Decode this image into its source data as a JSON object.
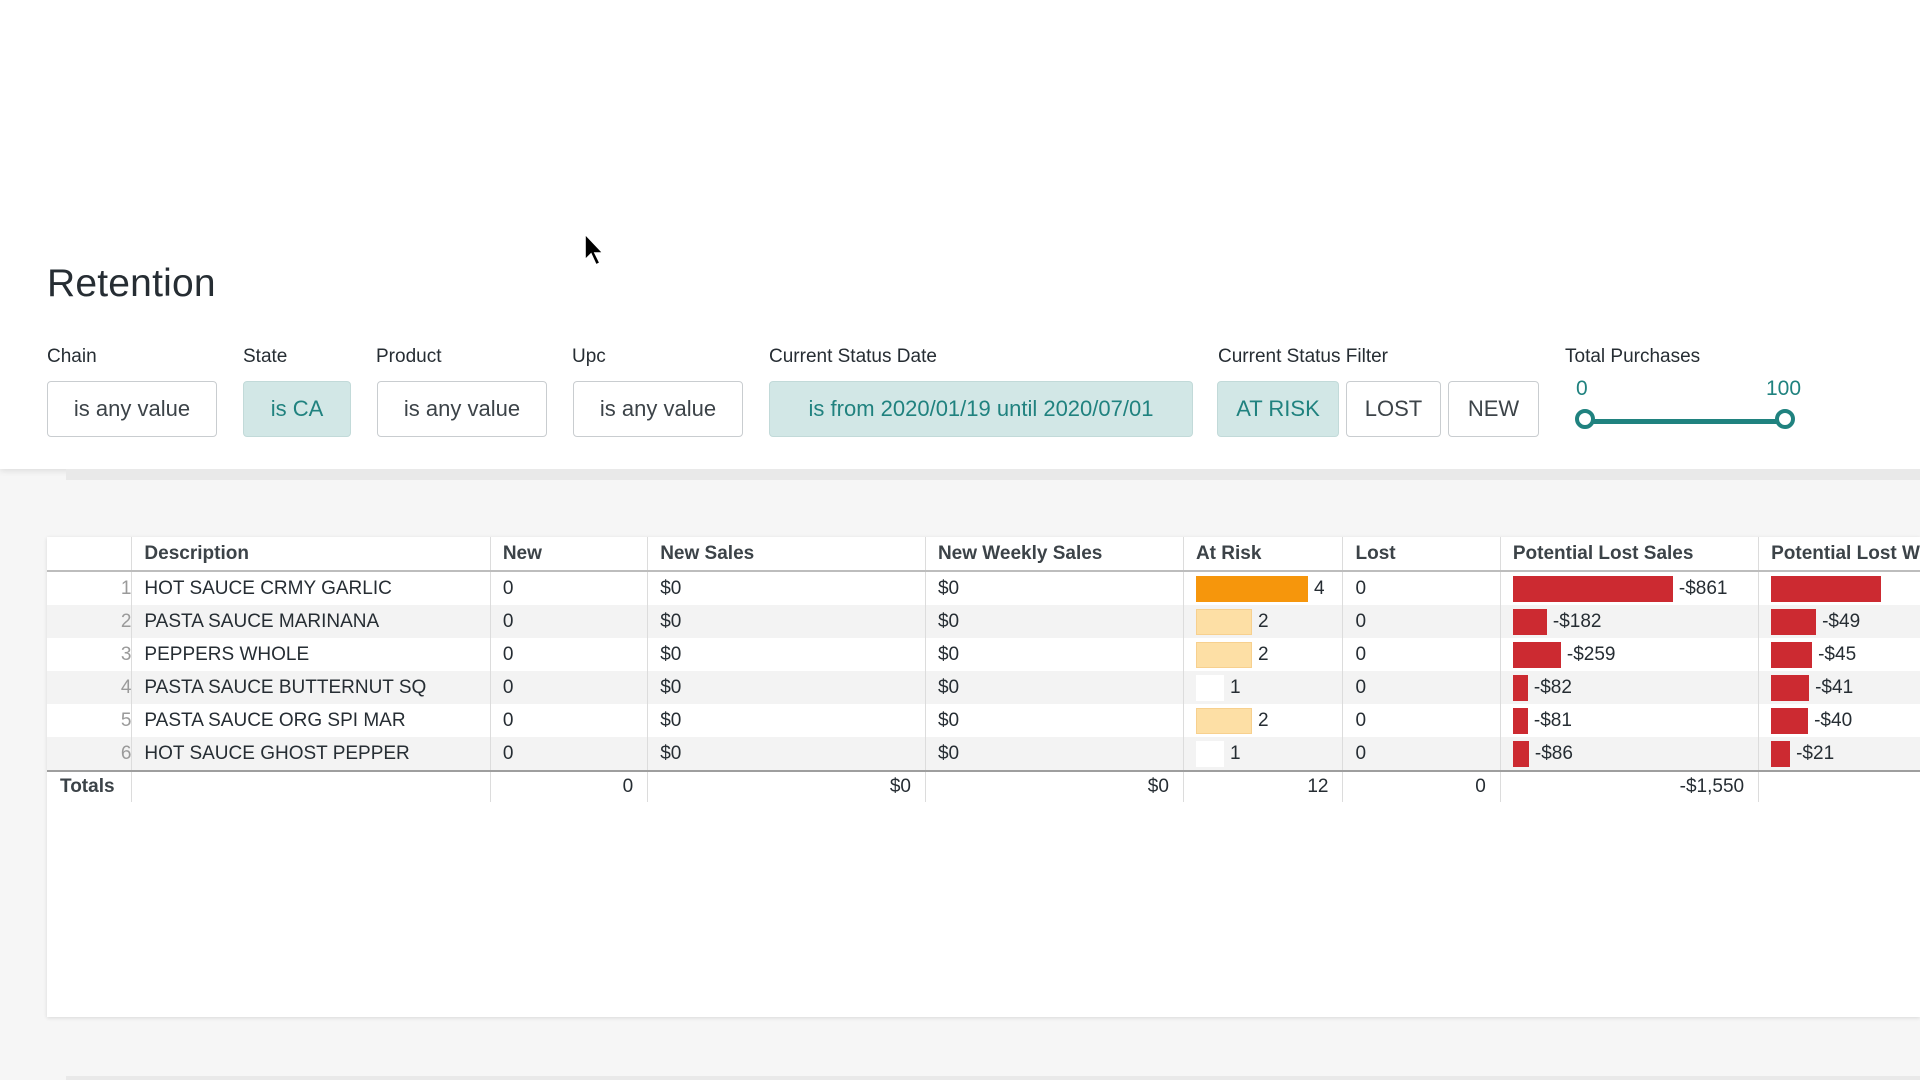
{
  "page": {
    "title": "Retention"
  },
  "filters": {
    "chain": {
      "label": "Chain",
      "value": "is any value"
    },
    "state": {
      "label": "State",
      "value": "is CA"
    },
    "product": {
      "label": "Product",
      "value": "is any value"
    },
    "upc": {
      "label": "Upc",
      "value": "is any value"
    },
    "status_date": {
      "label": "Current Status Date",
      "value": "is from 2020/01/19 until 2020/07/01"
    },
    "status_filter": {
      "label": "Current Status Filter",
      "options": [
        "AT RISK",
        "LOST",
        "NEW"
      ],
      "selected": "AT RISK"
    },
    "total_purchases": {
      "label": "Total Purchases",
      "min": "0",
      "max": "100",
      "low_fraction": 0.0,
      "high_fraction": 1.0
    }
  },
  "table": {
    "headers": [
      "",
      "Description",
      "New",
      "New Sales",
      "New Weekly Sales",
      "At Risk",
      "Lost",
      "Potential Lost Sales",
      "Potential Lost W"
    ],
    "rows": [
      {
        "n": "1",
        "description": "HOT SAUCE CRMY GARLIC",
        "new": "0",
        "new_sales": "$0",
        "new_weekly_sales": "$0",
        "at_risk": "4",
        "at_risk_value": 4,
        "lost": "0",
        "potential_lost_sales": "-$861",
        "pls_value": 861,
        "potential_lost_weekly": "",
        "plw_value": 120
      },
      {
        "n": "2",
        "description": "PASTA SAUCE MARINANA",
        "new": "0",
        "new_sales": "$0",
        "new_weekly_sales": "$0",
        "at_risk": "2",
        "at_risk_value": 2,
        "lost": "0",
        "potential_lost_sales": "-$182",
        "pls_value": 182,
        "potential_lost_weekly": "-$49",
        "plw_value": 49
      },
      {
        "n": "3",
        "description": "PEPPERS WHOLE",
        "new": "0",
        "new_sales": "$0",
        "new_weekly_sales": "$0",
        "at_risk": "2",
        "at_risk_value": 2,
        "lost": "0",
        "potential_lost_sales": "-$259",
        "pls_value": 259,
        "potential_lost_weekly": "-$45",
        "plw_value": 45
      },
      {
        "n": "4",
        "description": "PASTA SAUCE BUTTERNUT SQ",
        "new": "0",
        "new_sales": "$0",
        "new_weekly_sales": "$0",
        "at_risk": "1",
        "at_risk_value": 1,
        "lost": "0",
        "potential_lost_sales": "-$82",
        "pls_value": 82,
        "potential_lost_weekly": "-$41",
        "plw_value": 41
      },
      {
        "n": "5",
        "description": "PASTA SAUCE ORG SPI MAR",
        "new": "0",
        "new_sales": "$0",
        "new_weekly_sales": "$0",
        "at_risk": "2",
        "at_risk_value": 2,
        "lost": "0",
        "potential_lost_sales": "-$81",
        "pls_value": 81,
        "potential_lost_weekly": "-$40",
        "plw_value": 40
      },
      {
        "n": "6",
        "description": "HOT SAUCE GHOST PEPPER",
        "new": "0",
        "new_sales": "$0",
        "new_weekly_sales": "$0",
        "at_risk": "1",
        "at_risk_value": 1,
        "lost": "0",
        "potential_lost_sales": "-$86",
        "pls_value": 86,
        "potential_lost_weekly": "-$21",
        "plw_value": 21
      }
    ],
    "totals": {
      "label": "Totals",
      "new": "0",
      "new_sales": "$0",
      "new_weekly_sales": "$0",
      "at_risk": "12",
      "lost": "0",
      "potential_lost_sales": "-$1,550",
      "potential_lost_weekly": ""
    }
  },
  "colors": {
    "accent": "#20827f",
    "active_chip_bg": "#d2e7e6",
    "at_risk_bar": "#f6960c",
    "at_risk_bar_light": "#fddfa5",
    "lost_sales_bar": "#cc2a31"
  },
  "icons": {
    "cursor": "mouse-pointer-icon"
  }
}
